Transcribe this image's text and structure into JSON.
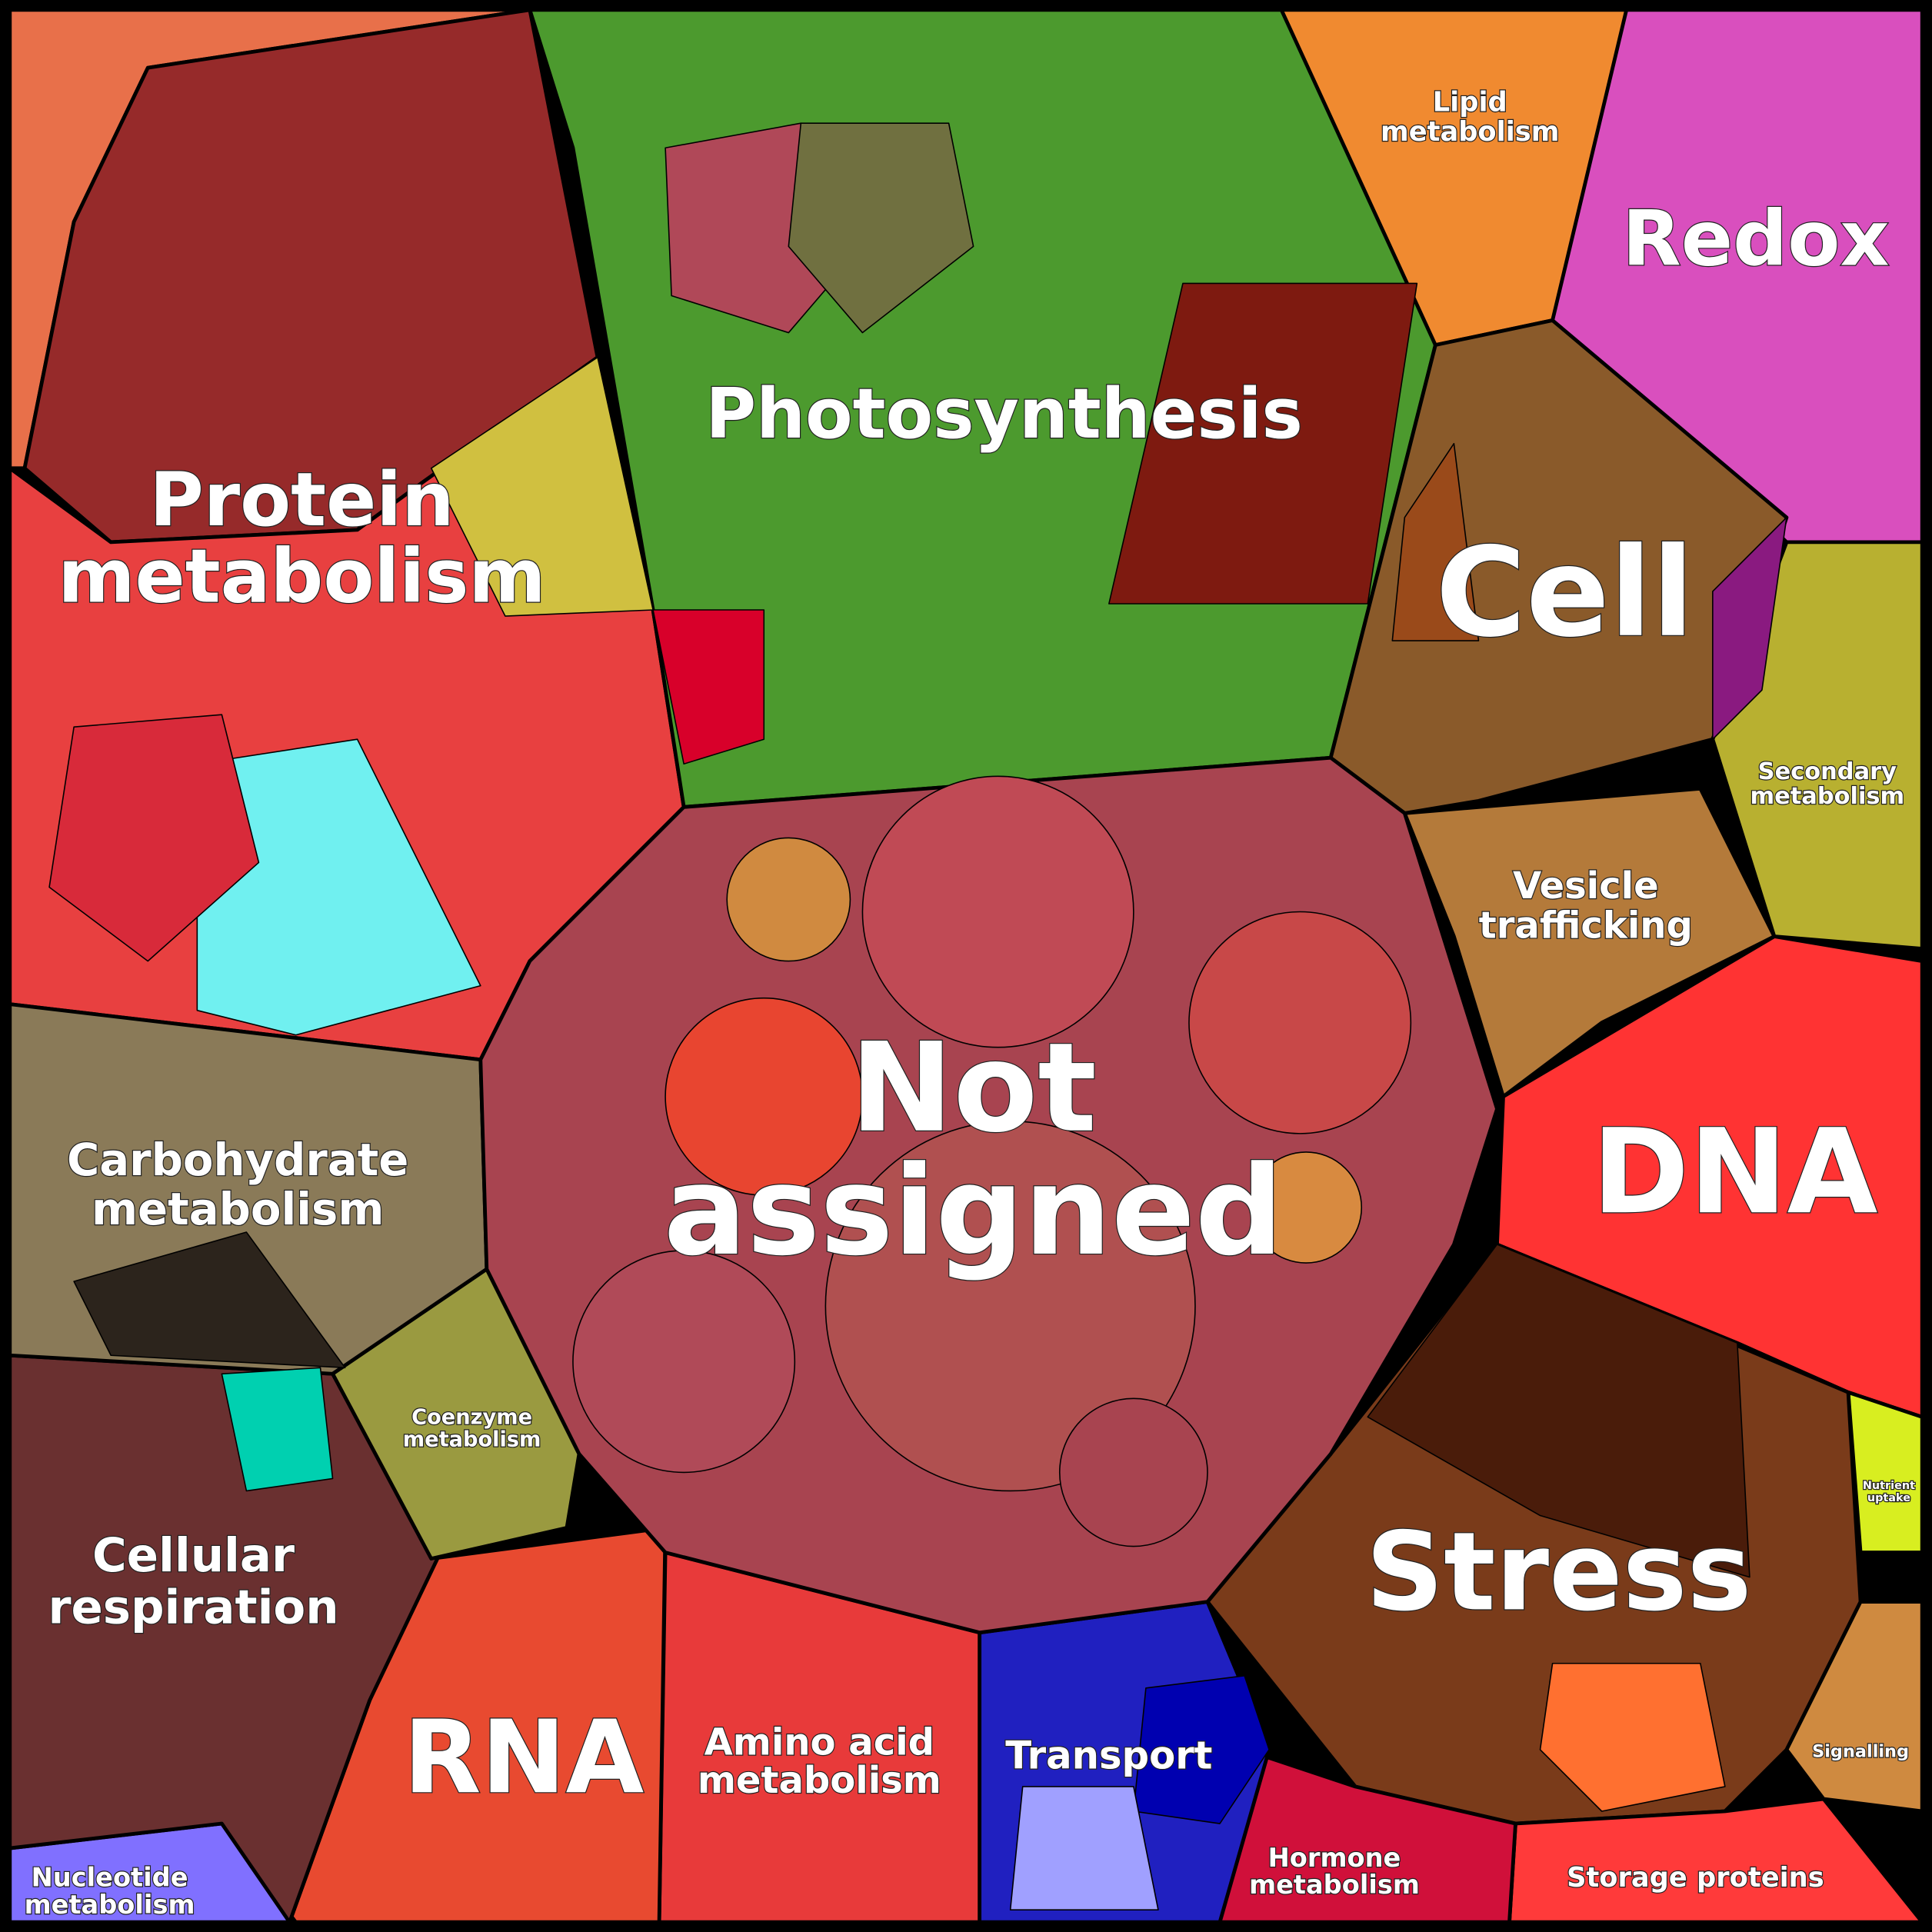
{
  "regions": [
    {
      "lines": [
        "Protein",
        "metabolism"
      ]
    },
    {
      "lines": [
        "Photosynthesis"
      ]
    },
    {
      "lines": [
        "Lipid",
        "metabolism"
      ]
    },
    {
      "lines": [
        "Redox"
      ]
    },
    {
      "lines": [
        "Cell"
      ]
    },
    {
      "lines": [
        "Secondary",
        "metabolism"
      ]
    },
    {
      "lines": [
        "Vesicle",
        "trafficking"
      ]
    },
    {
      "lines": [
        "DNA"
      ]
    },
    {
      "lines": [
        "Not",
        "assigned"
      ]
    },
    {
      "lines": [
        "Carbohydrate",
        "metabolism"
      ]
    },
    {
      "lines": [
        "Coenzyme",
        "metabolism"
      ]
    },
    {
      "lines": [
        "Cellular",
        "respiration"
      ]
    },
    {
      "lines": [
        "Stress"
      ]
    },
    {
      "lines": [
        "Nutrient",
        "uptake"
      ]
    },
    {
      "lines": [
        "Signalling"
      ]
    },
    {
      "lines": [
        "RNA"
      ]
    },
    {
      "lines": [
        "Amino acid",
        "metabolism"
      ]
    },
    {
      "lines": [
        "Transport"
      ]
    },
    {
      "lines": [
        "Hormone",
        "metabolism"
      ]
    },
    {
      "lines": [
        "Storage proteins"
      ]
    },
    {
      "lines": [
        "Nucleotide",
        "metabolism"
      ]
    }
  ]
}
